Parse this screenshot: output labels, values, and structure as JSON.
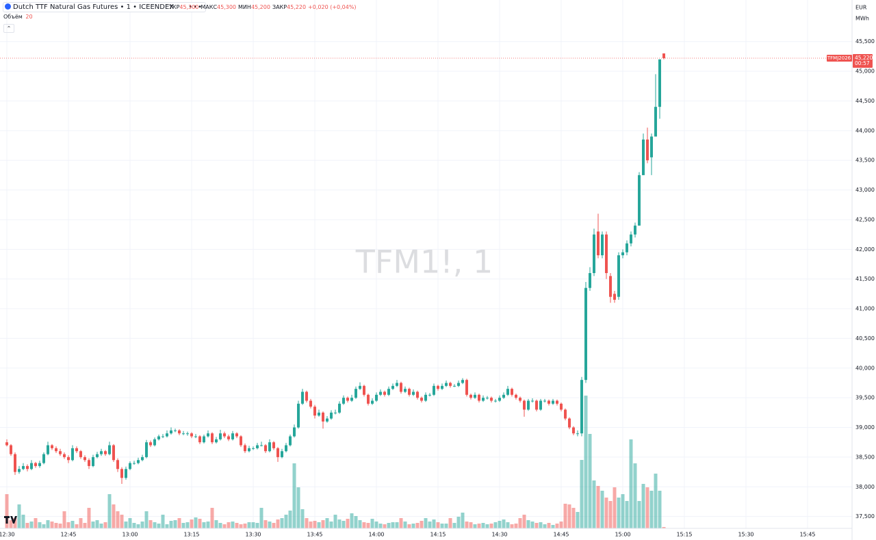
{
  "chart_data": {
    "type": "candlestick",
    "title": "Dutch TTF Natural Gas Futures • 1 • ICEENDEX",
    "watermark": "TFM1!, 1",
    "ohlc_legend": [
      {
        "label": "ТКР",
        "value": "45,300"
      },
      {
        "label": "МАКС",
        "value": "45,300"
      },
      {
        "label": "МИН",
        "value": "45,200"
      },
      {
        "label": "ЗАКР",
        "value": "45,220"
      }
    ],
    "change": "+0,020 (+0,04%)",
    "volume_label": "Объём",
    "currency": "EUR",
    "unit": "MWh",
    "up_color": "#26a69a",
    "down_color": "#ef5350",
    "grid": true,
    "ylim": [
      37300,
      46200
    ],
    "yticks": [
      {
        "value": 37500,
        "label": "37,500"
      },
      {
        "value": 38000,
        "label": "38,000"
      },
      {
        "value": 38500,
        "label": "38,500"
      },
      {
        "value": 39000,
        "label": "39,000"
      },
      {
        "value": 39500,
        "label": "39,500"
      },
      {
        "value": 40000,
        "label": "40,000"
      },
      {
        "value": 40500,
        "label": "40,500"
      },
      {
        "value": 41000,
        "label": "41,000"
      },
      {
        "value": 41500,
        "label": "41,500"
      },
      {
        "value": 42000,
        "label": "42,000"
      },
      {
        "value": 42500,
        "label": "42,500"
      },
      {
        "value": 43000,
        "label": "43,000"
      },
      {
        "value": 43500,
        "label": "43,500"
      },
      {
        "value": 44000,
        "label": "44,000"
      },
      {
        "value": 44500,
        "label": "44,500"
      },
      {
        "value": 45000,
        "label": "45,000"
      },
      {
        "value": 45500,
        "label": "45,500"
      }
    ],
    "xticks": [
      "12:30",
      "12:45",
      "13:00",
      "13:15",
      "13:30",
      "13:45",
      "14:00",
      "14:15",
      "14:30",
      "14:45",
      "15:00",
      "15:15",
      "15:30",
      "15:45"
    ],
    "last_price": {
      "ticker": "TFMJ2026",
      "value": 45220,
      "label": "45,220",
      "countdown": "00:57"
    },
    "x": [
      "12:30",
      "12:31",
      "12:32",
      "12:33",
      "12:34",
      "12:35",
      "12:36",
      "12:37",
      "12:38",
      "12:39",
      "12:40",
      "12:41",
      "12:42",
      "12:43",
      "12:44",
      "12:45",
      "12:46",
      "12:47",
      "12:48",
      "12:49",
      "12:50",
      "12:51",
      "12:52",
      "12:53",
      "12:54",
      "12:55",
      "12:56",
      "12:57",
      "12:58",
      "12:59",
      "13:00",
      "13:01",
      "13:02",
      "13:03",
      "13:04",
      "13:05",
      "13:06",
      "13:07",
      "13:08",
      "13:09",
      "13:10",
      "13:11",
      "13:12",
      "13:13",
      "13:14",
      "13:15",
      "13:16",
      "13:17",
      "13:18",
      "13:19",
      "13:20",
      "13:21",
      "13:22",
      "13:23",
      "13:24",
      "13:25",
      "13:26",
      "13:27",
      "13:28",
      "13:29",
      "13:30",
      "13:31",
      "13:32",
      "13:33",
      "13:34",
      "13:35",
      "13:36",
      "13:37",
      "13:38",
      "13:39",
      "13:40",
      "13:41",
      "13:42",
      "13:43",
      "13:44",
      "13:45",
      "13:46",
      "13:47",
      "13:48",
      "13:49",
      "13:50",
      "13:51",
      "13:52",
      "13:53",
      "13:54",
      "13:55",
      "13:56",
      "13:57",
      "13:58",
      "13:59",
      "14:00",
      "14:01",
      "14:02",
      "14:03",
      "14:04",
      "14:05",
      "14:06",
      "14:07",
      "14:08",
      "14:09",
      "14:10",
      "14:11",
      "14:12",
      "14:13",
      "14:14",
      "14:15",
      "14:16",
      "14:17",
      "14:18",
      "14:19",
      "14:20",
      "14:21",
      "14:22",
      "14:23",
      "14:24",
      "14:25",
      "14:26",
      "14:27",
      "14:28",
      "14:29",
      "14:30",
      "14:31",
      "14:32",
      "14:33",
      "14:34",
      "14:35",
      "14:36",
      "14:37",
      "14:38",
      "14:39",
      "14:40",
      "14:41",
      "14:42",
      "14:43",
      "14:44",
      "14:45",
      "14:46",
      "14:47",
      "14:48",
      "14:49",
      "14:50",
      "14:51",
      "14:52",
      "14:53",
      "14:54",
      "14:55",
      "14:56",
      "14:57",
      "14:58",
      "14:59",
      "15:00",
      "15:01",
      "15:02",
      "15:03",
      "15:04",
      "15:05",
      "15:06",
      "15:07",
      "15:08",
      "15:09",
      "15:10"
    ],
    "candles": [
      [
        38750,
        38800,
        38680,
        38700
      ],
      [
        38700,
        38720,
        38520,
        38550
      ],
      [
        38550,
        38580,
        38200,
        38250
      ],
      [
        38250,
        38350,
        38220,
        38300
      ],
      [
        38300,
        38400,
        38280,
        38350
      ],
      [
        38350,
        38380,
        38260,
        38300
      ],
      [
        38300,
        38450,
        38280,
        38400
      ],
      [
        38400,
        38420,
        38320,
        38350
      ],
      [
        38350,
        38440,
        38320,
        38400
      ],
      [
        38400,
        38580,
        38380,
        38550
      ],
      [
        38550,
        38760,
        38530,
        38700
      ],
      [
        38700,
        38720,
        38620,
        38650
      ],
      [
        38650,
        38680,
        38570,
        38600
      ],
      [
        38600,
        38640,
        38520,
        38550
      ],
      [
        38550,
        38580,
        38470,
        38500
      ],
      [
        38500,
        38530,
        38400,
        38450
      ],
      [
        38450,
        38700,
        38430,
        38650
      ],
      [
        38650,
        38680,
        38570,
        38600
      ],
      [
        38600,
        38620,
        38470,
        38500
      ],
      [
        38500,
        38530,
        38420,
        38450
      ],
      [
        38450,
        38480,
        38300,
        38350
      ],
      [
        38350,
        38540,
        38330,
        38500
      ],
      [
        38500,
        38590,
        38480,
        38550
      ],
      [
        38550,
        38640,
        38520,
        38600
      ],
      [
        38600,
        38620,
        38520,
        38550
      ],
      [
        38550,
        38760,
        38530,
        38700
      ],
      [
        38700,
        38720,
        38420,
        38450
      ],
      [
        38450,
        38480,
        38250,
        38300
      ],
      [
        38300,
        38330,
        38050,
        38150
      ],
      [
        38150,
        38340,
        38120,
        38300
      ],
      [
        38300,
        38430,
        38280,
        38400
      ],
      [
        38400,
        38440,
        38370,
        38400
      ],
      [
        38400,
        38490,
        38380,
        38450
      ],
      [
        38450,
        38540,
        38430,
        38500
      ],
      [
        38500,
        38790,
        38480,
        38750
      ],
      [
        38750,
        38780,
        38670,
        38700
      ],
      [
        38700,
        38830,
        38680,
        38800
      ],
      [
        38800,
        38880,
        38780,
        38850
      ],
      [
        38850,
        38890,
        38820,
        38850
      ],
      [
        38850,
        38950,
        38830,
        38900
      ],
      [
        38900,
        39000,
        38880,
        38950
      ],
      [
        38950,
        38980,
        38920,
        38950
      ],
      [
        38950,
        38970,
        38870,
        38900
      ],
      [
        38900,
        38940,
        38870,
        38900
      ],
      [
        38900,
        38930,
        38860,
        38900
      ],
      [
        38900,
        38920,
        38820,
        38850
      ],
      [
        38850,
        38890,
        38820,
        38850
      ],
      [
        38850,
        38870,
        38720,
        38750
      ],
      [
        38750,
        38880,
        38730,
        38850
      ],
      [
        38850,
        38950,
        38830,
        38900
      ],
      [
        38900,
        38920,
        38720,
        38750
      ],
      [
        38750,
        38840,
        38730,
        38800
      ],
      [
        38800,
        38960,
        38780,
        38900
      ],
      [
        38900,
        38930,
        38820,
        38850
      ],
      [
        38850,
        38880,
        38770,
        38800
      ],
      [
        38800,
        38940,
        38780,
        38900
      ],
      [
        38900,
        38920,
        38820,
        38850
      ],
      [
        38850,
        38870,
        38670,
        38700
      ],
      [
        38700,
        38730,
        38570,
        38600
      ],
      [
        38600,
        38690,
        38580,
        38650
      ],
      [
        38650,
        38680,
        38620,
        38650
      ],
      [
        38650,
        38740,
        38630,
        38700
      ],
      [
        38700,
        38760,
        38680,
        38700
      ],
      [
        38700,
        38720,
        38570,
        38600
      ],
      [
        38600,
        38800,
        38580,
        38750
      ],
      [
        38750,
        38770,
        38620,
        38650
      ],
      [
        38650,
        38670,
        38420,
        38500
      ],
      [
        38500,
        38640,
        38480,
        38600
      ],
      [
        38600,
        38740,
        38580,
        38700
      ],
      [
        38700,
        38880,
        38680,
        38850
      ],
      [
        38850,
        39050,
        38830,
        39000
      ],
      [
        39000,
        39450,
        38980,
        39400
      ],
      [
        39400,
        39650,
        39380,
        39600
      ],
      [
        39600,
        39620,
        39420,
        39450
      ],
      [
        39450,
        39480,
        39320,
        39350
      ],
      [
        39350,
        39380,
        39150,
        39200
      ],
      [
        39200,
        39300,
        39180,
        39250
      ],
      [
        39250,
        39270,
        38980,
        39100
      ],
      [
        39100,
        39190,
        39080,
        39150
      ],
      [
        39150,
        39290,
        39130,
        39250
      ],
      [
        39250,
        39300,
        39220,
        39250
      ],
      [
        39250,
        39440,
        39230,
        39400
      ],
      [
        39400,
        39540,
        39380,
        39500
      ],
      [
        39500,
        39520,
        39420,
        39450
      ],
      [
        39450,
        39550,
        39430,
        39500
      ],
      [
        39500,
        39690,
        39480,
        39650
      ],
      [
        39650,
        39760,
        39630,
        39700
      ],
      [
        39700,
        39720,
        39520,
        39550
      ],
      [
        39550,
        39570,
        39370,
        39400
      ],
      [
        39400,
        39490,
        39380,
        39450
      ],
      [
        39450,
        39590,
        39430,
        39550
      ],
      [
        39550,
        39640,
        39530,
        39600
      ],
      [
        39600,
        39620,
        39520,
        39550
      ],
      [
        39550,
        39690,
        39530,
        39650
      ],
      [
        39650,
        39740,
        39630,
        39700
      ],
      [
        39700,
        39800,
        39680,
        39750
      ],
      [
        39750,
        39770,
        39570,
        39600
      ],
      [
        39600,
        39690,
        39580,
        39650
      ],
      [
        39650,
        39670,
        39520,
        39550
      ],
      [
        39550,
        39640,
        39530,
        39600
      ],
      [
        39600,
        39620,
        39470,
        39500
      ],
      [
        39500,
        39520,
        39420,
        39450
      ],
      [
        39450,
        39590,
        39430,
        39550
      ],
      [
        39550,
        39580,
        39520,
        39550
      ],
      [
        39550,
        39740,
        39530,
        39700
      ],
      [
        39700,
        39720,
        39620,
        39650
      ],
      [
        39650,
        39740,
        39630,
        39700
      ],
      [
        39700,
        39790,
        39680,
        39750
      ],
      [
        39750,
        39770,
        39670,
        39700
      ],
      [
        39700,
        39730,
        39680,
        39700
      ],
      [
        39700,
        39790,
        39680,
        39750
      ],
      [
        39750,
        39830,
        39730,
        39800
      ],
      [
        39800,
        39820,
        39520,
        39550
      ],
      [
        39550,
        39570,
        39470,
        39500
      ],
      [
        39500,
        39590,
        39480,
        39550
      ],
      [
        39550,
        39570,
        39420,
        39450
      ],
      [
        39450,
        39540,
        39430,
        39500
      ],
      [
        39500,
        39530,
        39470,
        39500
      ],
      [
        39500,
        39520,
        39420,
        39450
      ],
      [
        39450,
        39480,
        39420,
        39450
      ],
      [
        39450,
        39540,
        39430,
        39500
      ],
      [
        39500,
        39590,
        39480,
        39550
      ],
      [
        39550,
        39700,
        39530,
        39650
      ],
      [
        39650,
        39670,
        39520,
        39550
      ],
      [
        39550,
        39570,
        39470,
        39500
      ],
      [
        39500,
        39520,
        39420,
        39450
      ],
      [
        39450,
        39470,
        39180,
        39300
      ],
      [
        39300,
        39480,
        39280,
        39450
      ],
      [
        39450,
        39490,
        39420,
        39450
      ],
      [
        39450,
        39470,
        39270,
        39300
      ],
      [
        39300,
        39480,
        39280,
        39450
      ],
      [
        39450,
        39480,
        39420,
        39450
      ],
      [
        39450,
        39470,
        39370,
        39400
      ],
      [
        39400,
        39480,
        39380,
        39450
      ],
      [
        39450,
        39470,
        39370,
        39400
      ],
      [
        39400,
        39420,
        39270,
        39300
      ],
      [
        39300,
        39320,
        39120,
        39150
      ],
      [
        39150,
        39170,
        38970,
        39000
      ],
      [
        39000,
        39020,
        38870,
        38900
      ],
      [
        38900,
        38950,
        38850,
        38900
      ],
      [
        38900,
        39850,
        38850,
        39800
      ],
      [
        39800,
        41450,
        39750,
        41350
      ],
      [
        41350,
        41700,
        41300,
        41600
      ],
      [
        41600,
        42350,
        41550,
        42250
      ],
      [
        42300,
        42600,
        41850,
        41900
      ],
      [
        41900,
        42300,
        41850,
        42250
      ],
      [
        42250,
        42300,
        41500,
        41600
      ],
      [
        41550,
        41600,
        41100,
        41200
      ],
      [
        41250,
        41300,
        41100,
        41150
      ],
      [
        41200,
        41950,
        41150,
        41900
      ],
      [
        41900,
        42000,
        41850,
        41950
      ],
      [
        41950,
        42150,
        41900,
        42100
      ],
      [
        42100,
        42300,
        42050,
        42250
      ],
      [
        42250,
        42450,
        42200,
        42400
      ],
      [
        42400,
        43300,
        42400,
        43250
      ],
      [
        43250,
        43950,
        43250,
        43850
      ],
      [
        43850,
        44050,
        43450,
        43500
      ],
      [
        43550,
        43950,
        43250,
        43900
      ],
      [
        43900,
        44950,
        43900,
        44400
      ],
      [
        44400,
        45200,
        44200,
        45200
      ],
      [
        45300,
        45300,
        45200,
        45220
      ]
    ],
    "volume": [
      500,
      120,
      150,
      350,
      200,
      80,
      100,
      150,
      90,
      60,
      120,
      100,
      80,
      70,
      250,
      90,
      110,
      60,
      150,
      80,
      300,
      100,
      120,
      70,
      90,
      500,
      350,
      250,
      200,
      100,
      150,
      80,
      60,
      100,
      250,
      120,
      90,
      70,
      200,
      60,
      110,
      120,
      150,
      80,
      90,
      130,
      160,
      140,
      90,
      100,
      300,
      120,
      80,
      60,
      90,
      100,
      80,
      60,
      70,
      90,
      90,
      80,
      300,
      120,
      100,
      80,
      130,
      150,
      200,
      260,
      950,
      600,
      280,
      150,
      100,
      110,
      90,
      120,
      150,
      100,
      200,
      130,
      110,
      140,
      220,
      180,
      120,
      90,
      80,
      140,
      100,
      70,
      60,
      80,
      90,
      90,
      150,
      100,
      60,
      70,
      80,
      110,
      150,
      100,
      130,
      90,
      70,
      70,
      150,
      80,
      170,
      230,
      100,
      90,
      60,
      70,
      80,
      60,
      70,
      90,
      110,
      130,
      90,
      60,
      70,
      150,
      200,
      120,
      100,
      80,
      90,
      60,
      80,
      50,
      70,
      100,
      360,
      350,
      300,
      240,
      1000,
      1940,
      1380,
      700,
      620,
      550,
      450,
      400,
      600,
      450,
      500,
      400,
      1300,
      950,
      400,
      650,
      600,
      550,
      800,
      550,
      20
    ]
  }
}
